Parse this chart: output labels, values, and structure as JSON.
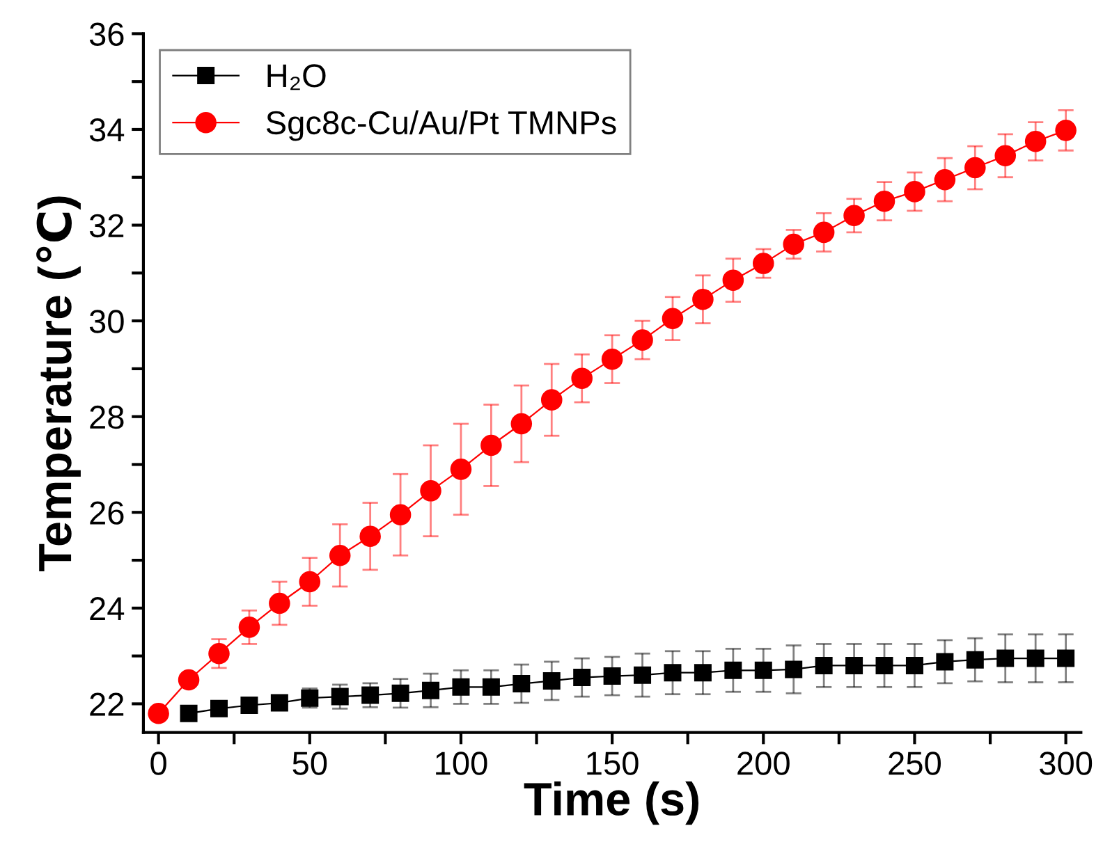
{
  "chart_data": {
    "type": "line",
    "xlabel": "Time (s)",
    "ylabel": "Temperature (℃)",
    "x": [
      0,
      10,
      20,
      30,
      40,
      50,
      60,
      70,
      80,
      90,
      100,
      110,
      120,
      130,
      140,
      150,
      160,
      170,
      180,
      190,
      200,
      210,
      220,
      230,
      240,
      250,
      260,
      270,
      280,
      290,
      300
    ],
    "series": [
      {
        "name": "H₂O",
        "color": "#000000",
        "marker": "square",
        "values": [
          null,
          21.8,
          21.9,
          21.97,
          22.02,
          22.12,
          22.15,
          22.18,
          22.22,
          22.28,
          22.35,
          22.35,
          22.42,
          22.48,
          22.55,
          22.58,
          22.6,
          22.65,
          22.65,
          22.7,
          22.7,
          22.72,
          22.8,
          22.8,
          22.8,
          22.8,
          22.88,
          22.92,
          22.95,
          22.95,
          22.95
        ],
        "errors": [
          null,
          null,
          null,
          null,
          null,
          0.2,
          0.25,
          0.25,
          0.3,
          0.35,
          0.35,
          0.35,
          0.4,
          0.4,
          0.4,
          0.4,
          0.45,
          0.45,
          0.45,
          0.45,
          0.45,
          0.5,
          0.45,
          0.45,
          0.45,
          0.45,
          0.45,
          0.45,
          0.5,
          0.5,
          0.5
        ]
      },
      {
        "name": "Sgc8c-Cu/Au/Pt TMNPs",
        "color": "#ff0000",
        "marker": "circle",
        "values": [
          21.8,
          22.5,
          23.05,
          23.6,
          24.1,
          24.55,
          25.1,
          25.5,
          25.95,
          26.45,
          26.9,
          27.4,
          27.85,
          28.35,
          28.8,
          29.2,
          29.6,
          30.05,
          30.45,
          30.85,
          31.2,
          31.6,
          31.85,
          32.2,
          32.5,
          32.7,
          32.95,
          33.2,
          33.45,
          33.75,
          33.98
        ],
        "errors": [
          null,
          null,
          0.3,
          0.35,
          0.45,
          0.5,
          0.65,
          0.7,
          0.85,
          0.95,
          0.95,
          0.85,
          0.8,
          0.75,
          0.5,
          0.5,
          0.4,
          0.45,
          0.5,
          0.45,
          0.3,
          0.3,
          0.4,
          0.35,
          0.4,
          0.4,
          0.45,
          0.45,
          0.45,
          0.4,
          0.42
        ]
      }
    ],
    "xlim": [
      -5,
      305
    ],
    "ylim": [
      21.4,
      36
    ],
    "xticks": [
      0,
      {
        "value": 25,
        "label": null
      },
      50,
      {
        "value": 75,
        "label": null
      },
      100,
      {
        "value": 125,
        "label": null
      },
      150,
      {
        "value": 175,
        "label": null
      },
      200,
      {
        "value": 225,
        "label": null
      },
      250,
      {
        "value": 275,
        "label": null
      },
      300
    ],
    "yticks": [
      22,
      {
        "value": 23,
        "label": null
      },
      24,
      {
        "value": 25,
        "label": null
      },
      26,
      {
        "value": 27,
        "label": null
      },
      28,
      {
        "value": 29,
        "label": null
      },
      30,
      {
        "value": 31,
        "label": null
      },
      32,
      {
        "value": 33,
        "label": null
      },
      34,
      {
        "value": 35,
        "label": null
      },
      36
    ],
    "grid": false,
    "legend": "top left",
    "line_style": "solid"
  }
}
